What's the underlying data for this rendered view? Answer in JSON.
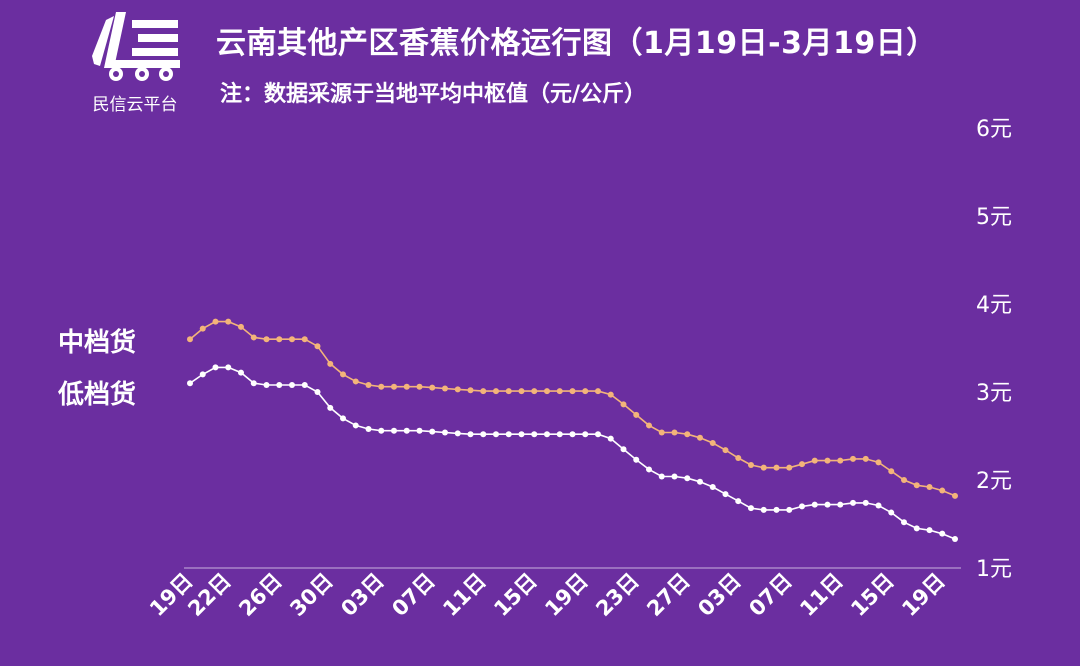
{
  "logo": {
    "name": "民信云平台"
  },
  "header": {
    "title": "云南其他产区香蕉价格运行图（1月19日-3月19日）",
    "subtitle": "注：数据采源于当地平均中枢值（元/公斤）"
  },
  "chart_data": {
    "type": "line",
    "title": "云南其他产区香蕉价格运行图（1月19日-3月19日）",
    "ylim": [
      1,
      6
    ],
    "y_ticks": [
      "1元",
      "2元",
      "3元",
      "4元",
      "5元",
      "6元"
    ],
    "x_tick_labels": [
      "19日",
      "22日",
      "26日",
      "30日",
      "03日",
      "07日",
      "11日",
      "15日",
      "19日",
      "23日",
      "27日",
      "03日",
      "07日",
      "11日",
      "15日",
      "19日"
    ],
    "x_tick_index": [
      0,
      3,
      7,
      11,
      15,
      19,
      23,
      27,
      31,
      35,
      39,
      43,
      47,
      51,
      55,
      59
    ],
    "series": [
      {
        "name": "中档货",
        "color": "#f3b47a",
        "values": [
          3.6,
          3.72,
          3.8,
          3.8,
          3.74,
          3.62,
          3.6,
          3.6,
          3.6,
          3.6,
          3.52,
          3.32,
          3.2,
          3.12,
          3.08,
          3.06,
          3.06,
          3.06,
          3.06,
          3.05,
          3.04,
          3.03,
          3.02,
          3.01,
          3.01,
          3.01,
          3.01,
          3.01,
          3.01,
          3.01,
          3.01,
          3.01,
          3.01,
          2.97,
          2.86,
          2.74,
          2.62,
          2.54,
          2.54,
          2.52,
          2.48,
          2.42,
          2.34,
          2.25,
          2.17,
          2.14,
          2.14,
          2.14,
          2.18,
          2.22,
          2.22,
          2.22,
          2.24,
          2.24,
          2.2,
          2.1,
          2.0,
          1.94,
          1.92,
          1.88,
          1.82
        ]
      },
      {
        "name": "低档货",
        "color": "#ffffff",
        "values": [
          3.1,
          3.2,
          3.28,
          3.28,
          3.22,
          3.1,
          3.08,
          3.08,
          3.08,
          3.08,
          3.0,
          2.82,
          2.7,
          2.62,
          2.58,
          2.56,
          2.56,
          2.56,
          2.56,
          2.55,
          2.54,
          2.53,
          2.52,
          2.52,
          2.52,
          2.52,
          2.52,
          2.52,
          2.52,
          2.52,
          2.52,
          2.52,
          2.52,
          2.47,
          2.35,
          2.23,
          2.12,
          2.04,
          2.04,
          2.02,
          1.98,
          1.92,
          1.84,
          1.76,
          1.68,
          1.66,
          1.66,
          1.66,
          1.7,
          1.72,
          1.72,
          1.72,
          1.74,
          1.74,
          1.71,
          1.63,
          1.52,
          1.45,
          1.43,
          1.39,
          1.33
        ]
      }
    ],
    "grid": false,
    "legend_position": "left"
  }
}
